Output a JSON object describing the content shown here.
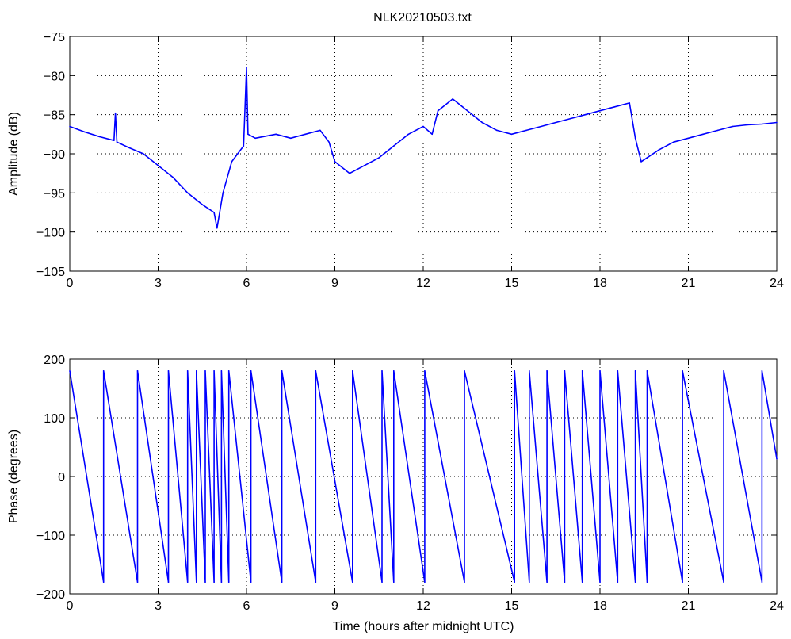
{
  "title": "NLK20210503.txt",
  "colors": {
    "line": "#0000ff",
    "axis": "#000000",
    "grid": "#000000",
    "background": "#ffffff"
  },
  "chart_data": [
    {
      "type": "line",
      "title": "NLK20210503.txt",
      "xlabel": "",
      "ylabel": "Amplitude (dB)",
      "xlim": [
        0,
        24
      ],
      "ylim": [
        -105,
        -75
      ],
      "xticks": [
        "0",
        "3",
        "6",
        "9",
        "12",
        "15",
        "18",
        "21",
        "24"
      ],
      "yticks": [
        "−75",
        "−80",
        "−85",
        "−90",
        "−95",
        "−100",
        "−105"
      ],
      "grid": true,
      "series": [
        {
          "x": [
            0,
            0.5,
            1.0,
            1.5,
            1.55,
            1.6,
            2.0,
            2.5,
            3.0,
            3.5,
            4.0,
            4.5,
            4.9,
            5.0,
            5.2,
            5.5,
            5.9,
            6.0,
            6.05,
            6.3,
            7.0,
            7.5,
            8.0,
            8.5,
            8.8,
            9.0,
            9.5,
            10.0,
            10.5,
            11.0,
            11.5,
            12.0,
            12.3,
            12.5,
            13.0,
            13.5,
            14.0,
            14.5,
            15.0,
            15.5,
            16.0,
            16.5,
            17.0,
            17.5,
            18.0,
            18.5,
            19.0,
            19.2,
            19.4,
            19.6,
            20.0,
            20.5,
            21.0,
            21.5,
            22.0,
            22.5,
            23.0,
            23.5,
            24.0
          ],
          "y": [
            -86.5,
            -87.2,
            -87.8,
            -88.3,
            -84.8,
            -88.5,
            -89.2,
            -90.0,
            -91.5,
            -93.0,
            -95.0,
            -96.5,
            -97.5,
            -99.5,
            -95.0,
            -91.0,
            -89.0,
            -79.0,
            -87.5,
            -88.0,
            -87.5,
            -88.0,
            -87.5,
            -87.0,
            -88.5,
            -91.0,
            -92.5,
            -91.5,
            -90.5,
            -89.0,
            -87.5,
            -86.5,
            -87.5,
            -84.5,
            -83.0,
            -84.5,
            -86.0,
            -87.0,
            -87.5,
            -87.0,
            -86.5,
            -86.0,
            -85.5,
            -85.0,
            -84.5,
            -84.0,
            -83.5,
            -88.0,
            -91.0,
            -90.5,
            -89.5,
            -88.5,
            -88.0,
            -87.5,
            -87.0,
            -86.5,
            -86.3,
            -86.2,
            -86.0
          ]
        }
      ]
    },
    {
      "type": "line",
      "title": "",
      "xlabel": "Time (hours after midnight UTC)",
      "ylabel": "Phase (degrees)",
      "xlim": [
        0,
        24
      ],
      "ylim": [
        -200,
        200
      ],
      "xticks": [
        "0",
        "3",
        "6",
        "9",
        "12",
        "15",
        "18",
        "21",
        "24"
      ],
      "yticks": [
        "200",
        "100",
        "0",
        "−100",
        "−200"
      ],
      "grid": true,
      "series": [
        {
          "x": [
            0,
            1.15,
            1.15,
            2.3,
            2.3,
            3.35,
            3.35,
            4.0,
            4.0,
            4.3,
            4.3,
            4.6,
            4.6,
            4.9,
            4.9,
            5.15,
            5.15,
            5.4,
            5.4,
            6.15,
            6.15,
            7.2,
            7.2,
            8.35,
            8.35,
            9.6,
            9.6,
            10.6,
            10.6,
            11.0,
            11.0,
            12.05,
            12.05,
            13.4,
            13.4,
            15.1,
            15.1,
            15.6,
            15.6,
            16.2,
            16.2,
            16.8,
            16.8,
            17.4,
            17.4,
            18.0,
            18.0,
            18.6,
            18.6,
            19.2,
            19.2,
            19.6,
            19.6,
            20.8,
            20.8,
            22.2,
            22.2,
            23.5,
            23.5,
            24.0
          ],
          "y": [
            180,
            -180,
            180,
            -180,
            180,
            -180,
            180,
            -180,
            180,
            -180,
            180,
            -180,
            180,
            -180,
            180,
            -180,
            180,
            -180,
            180,
            -180,
            180,
            -180,
            180,
            -180,
            180,
            -180,
            180,
            -180,
            180,
            -180,
            180,
            -180,
            180,
            -180,
            180,
            -180,
            180,
            -180,
            180,
            -180,
            180,
            -180,
            180,
            -180,
            180,
            -180,
            180,
            -180,
            180,
            -180,
            180,
            -180,
            180,
            -180,
            180,
            -180,
            180,
            -180,
            180,
            30
          ]
        }
      ]
    }
  ]
}
